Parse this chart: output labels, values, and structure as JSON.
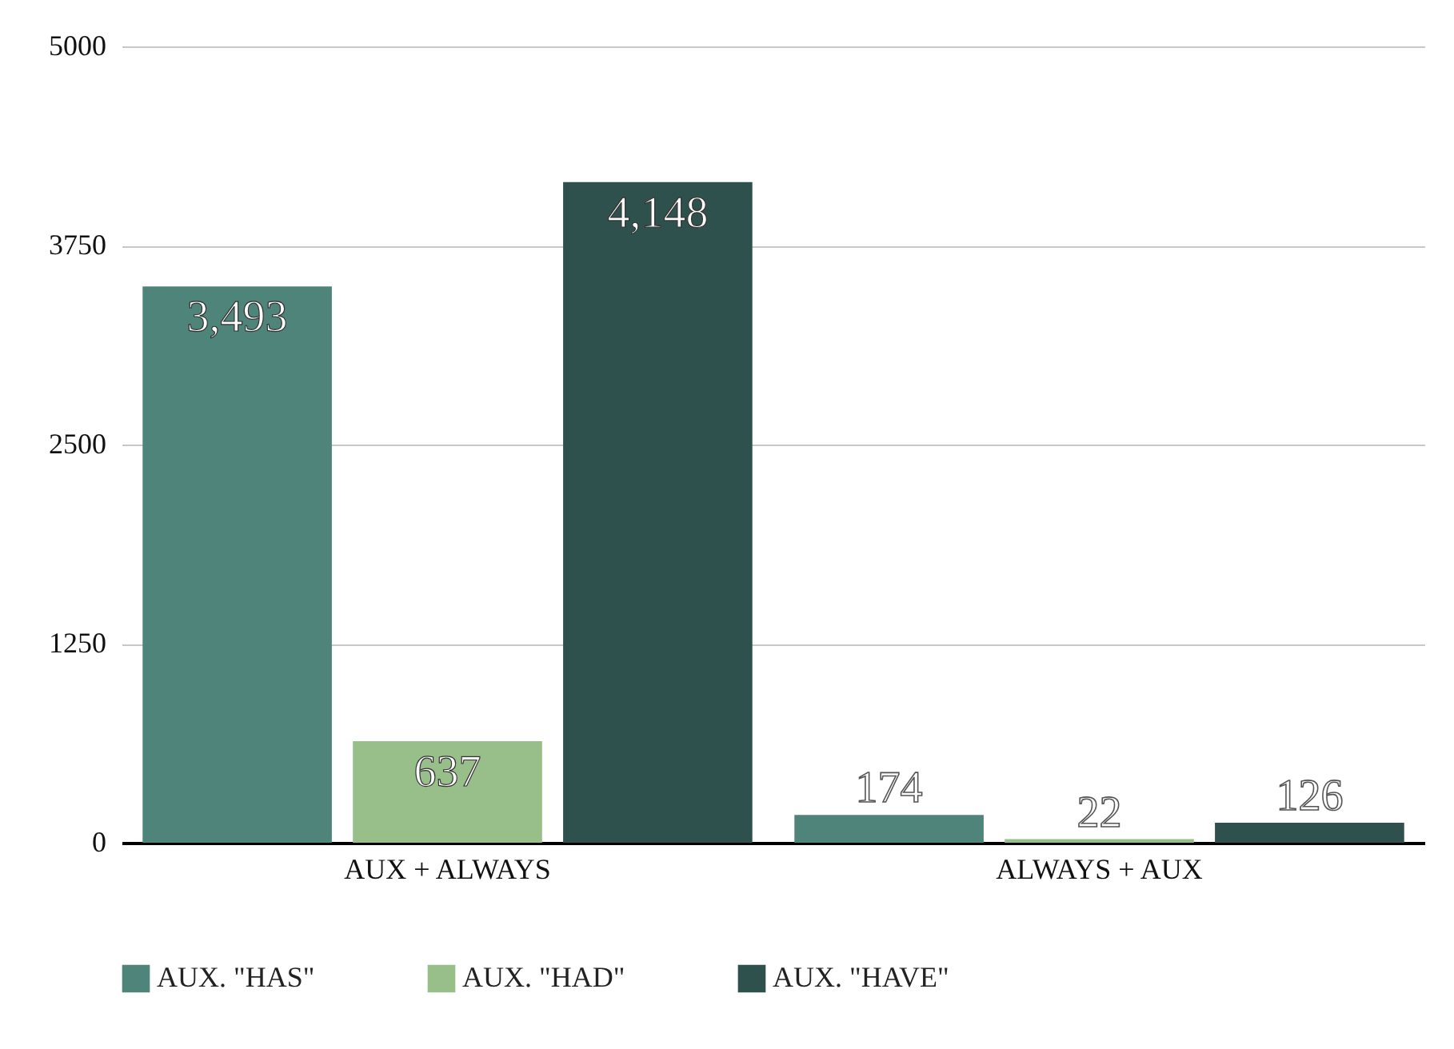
{
  "chart_data": {
    "type": "bar",
    "categories": [
      "AUX + ALWAYS",
      "ALWAYS + AUX"
    ],
    "series": [
      {
        "name": "AUX. \"HAS\"",
        "color": "#4e8479",
        "values": [
          3493,
          174
        ],
        "value_labels": [
          "3,493",
          "174"
        ]
      },
      {
        "name": "AUX. \"HAD\"",
        "color": "#98bf8a",
        "values": [
          637,
          22
        ],
        "value_labels": [
          "637",
          "22"
        ]
      },
      {
        "name": "AUX. \"HAVE\"",
        "color": "#2f514d",
        "values": [
          4148,
          126
        ],
        "value_labels": [
          "4,148",
          "126"
        ]
      }
    ],
    "ylim": [
      0,
      5000
    ],
    "yticks": [
      0,
      1250,
      2500,
      3750,
      5000
    ],
    "grid": "y",
    "legend": "bottom"
  }
}
